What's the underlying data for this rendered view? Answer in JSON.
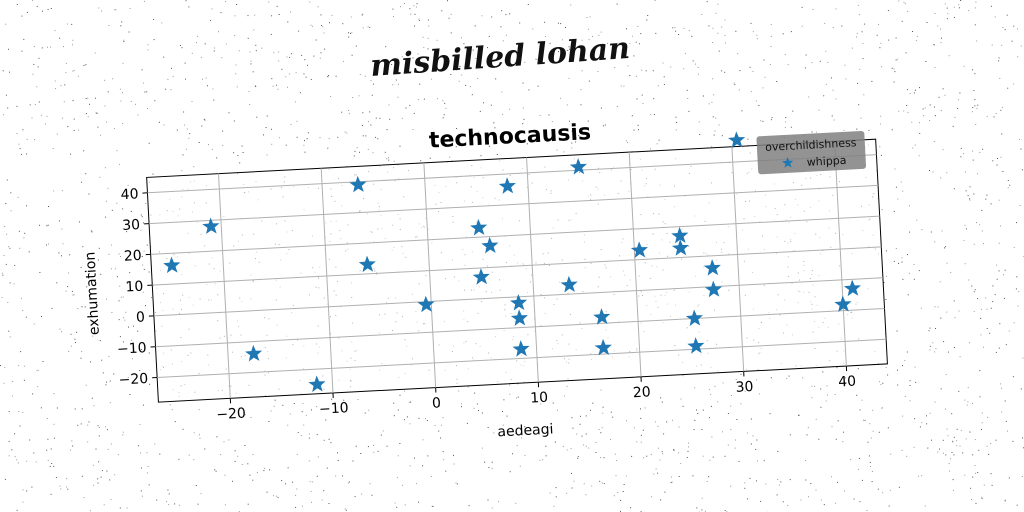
{
  "figure": {
    "suptitle": "misbilled lohan"
  },
  "chart_data": {
    "type": "scatter",
    "title": "technocausis",
    "xlabel": "aedeagi",
    "ylabel": "exhumation",
    "xlim": [
      -27,
      44
    ],
    "ylim": [
      -28,
      45
    ],
    "xticks": [
      -20,
      -10,
      0,
      10,
      20,
      30,
      40
    ],
    "yticks": [
      -20,
      -10,
      0,
      10,
      20,
      30,
      40
    ],
    "grid": true,
    "legend": {
      "title": "overchildishness",
      "position": "top-right"
    },
    "series": [
      {
        "name": "whippa",
        "marker": "star",
        "color": "#1f77b4",
        "points": [
          [
            -25,
            16
          ],
          [
            -21,
            28
          ],
          [
            -17.5,
            -14
          ],
          [
            -11.5,
            -25
          ],
          [
            -6.5,
            39
          ],
          [
            -6,
            13
          ],
          [
            -0.5,
            -1
          ],
          [
            5,
            7
          ],
          [
            5,
            23
          ],
          [
            6,
            17
          ],
          [
            8,
            36
          ],
          [
            8.5,
            -2
          ],
          [
            8.5,
            -7
          ],
          [
            8.5,
            -17
          ],
          [
            13.5,
            3
          ],
          [
            15,
            41
          ],
          [
            16.5,
            -8
          ],
          [
            16.5,
            -18
          ],
          [
            20.5,
            13
          ],
          [
            24.5,
            13
          ],
          [
            24.5,
            17
          ],
          [
            25.5,
            -10
          ],
          [
            25.5,
            -19
          ],
          [
            27.5,
            6
          ],
          [
            27.5,
            -1
          ],
          [
            30.5,
            47
          ],
          [
            40,
            -8
          ],
          [
            41,
            -3
          ]
        ]
      }
    ]
  }
}
